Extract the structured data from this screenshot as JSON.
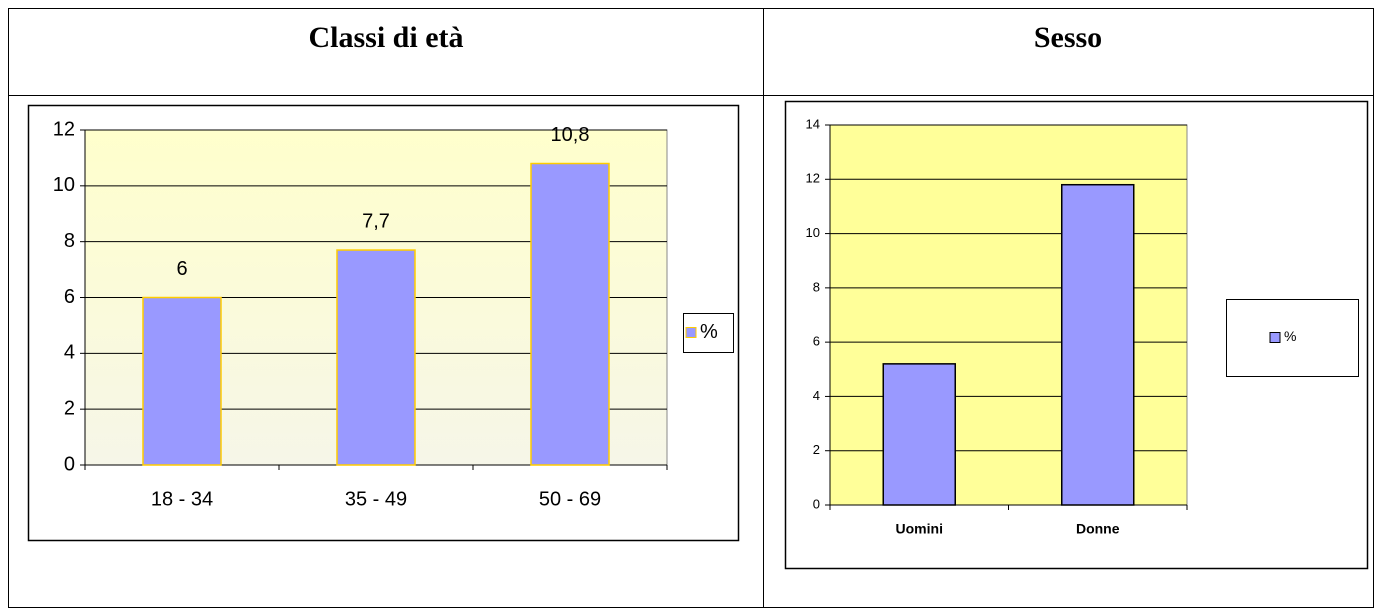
{
  "table": {
    "headers": [
      "Classi di età",
      "Sesso"
    ]
  },
  "chart_data": [
    {
      "type": "bar",
      "categories": [
        "18 - 34",
        "35 - 49",
        "50 - 69"
      ],
      "series": [
        {
          "name": "%",
          "color": "#9999ff",
          "edge": "#ffcc00",
          "values": [
            6,
            7.7,
            10.8
          ],
          "value_labels": [
            "6",
            "7,7",
            "10,8"
          ]
        }
      ],
      "ylim": [
        0,
        12
      ],
      "yticks": [
        0,
        2,
        4,
        6,
        8,
        10,
        12
      ],
      "grid": true,
      "legend": "right",
      "background": "gradient"
    },
    {
      "type": "bar",
      "categories": [
        "Uomini",
        "Donne"
      ],
      "series": [
        {
          "name": "%",
          "color": "#9999ff",
          "edge": "#000000",
          "values": [
            5.2,
            11.8
          ]
        }
      ],
      "ylim": [
        0,
        14
      ],
      "yticks": [
        0,
        2,
        4,
        6,
        8,
        10,
        12,
        14
      ],
      "grid": true,
      "legend": "right",
      "background": "#ffff99"
    }
  ]
}
